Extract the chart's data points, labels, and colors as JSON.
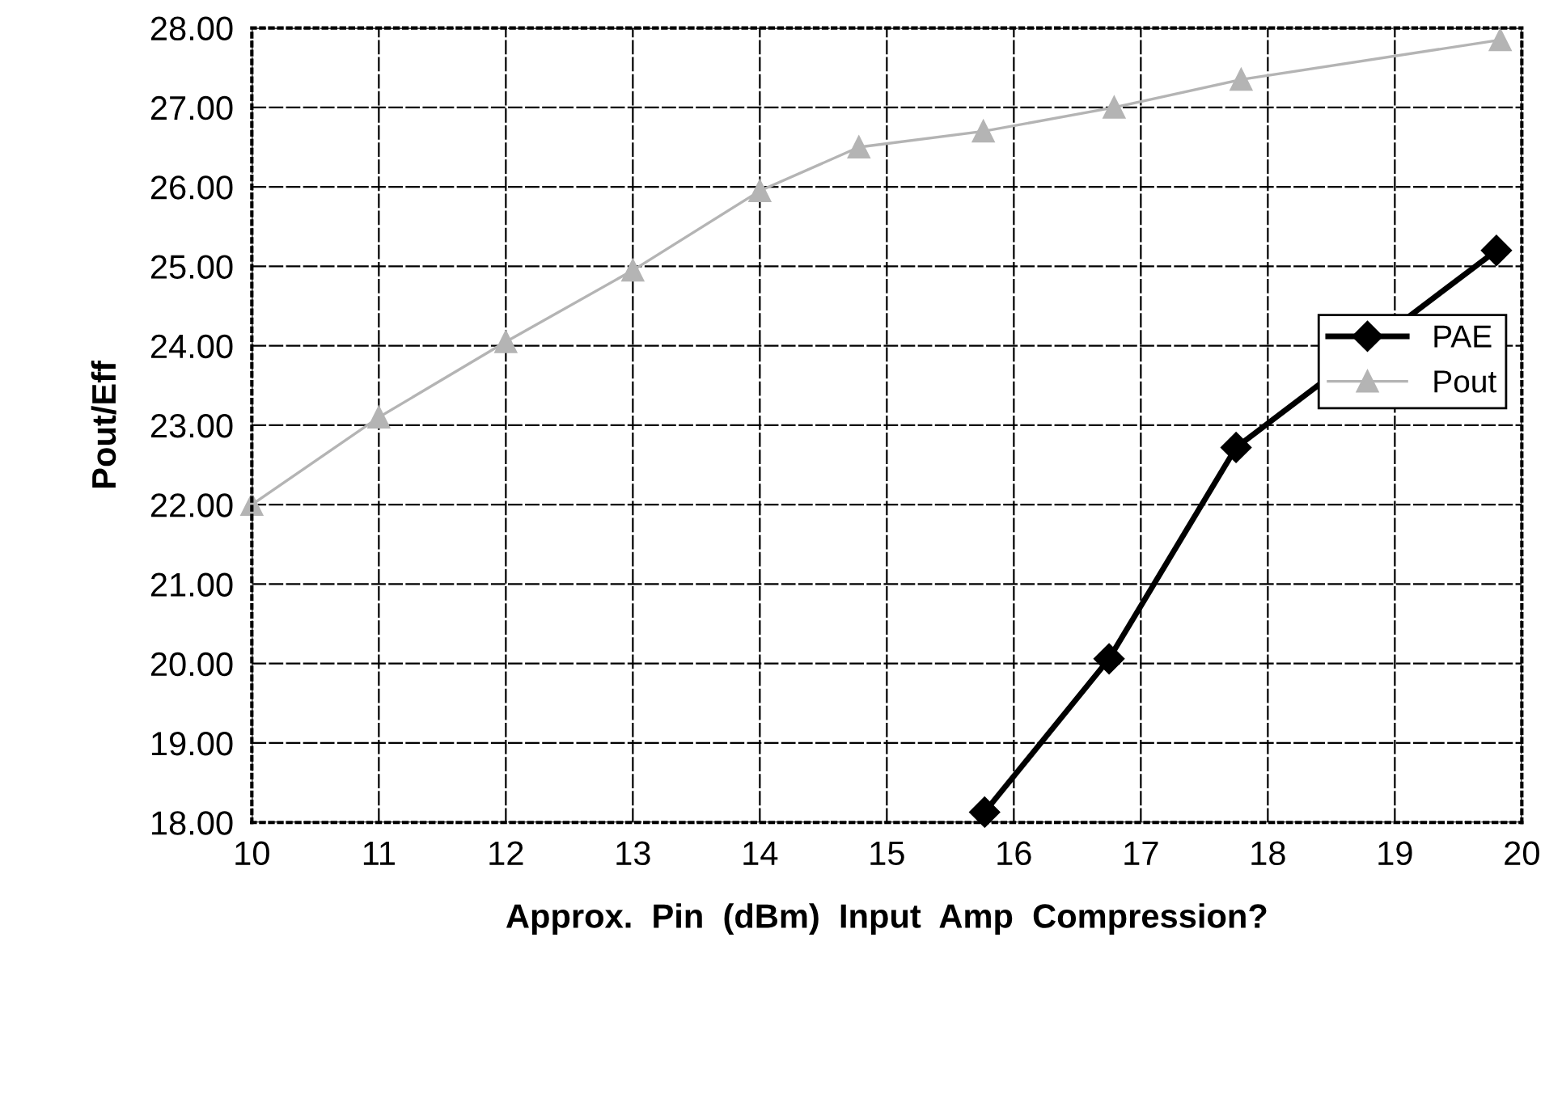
{
  "chart_data": {
    "type": "line",
    "xlabel": "Approx.  Pin  (dBm)  Input  Amp  Compression?",
    "ylabel": "Pout/Eff",
    "series": [
      {
        "name": "PAE",
        "color": "#000000",
        "marker": "diamond",
        "x": [
          15.77,
          16.75,
          17.75,
          19.8
        ],
        "values": [
          18.13,
          20.06,
          22.72,
          25.2
        ]
      },
      {
        "name": "Pout",
        "color": "#b4b4b4",
        "marker": "triangle",
        "x": [
          10,
          11,
          12,
          13,
          14,
          14.78,
          15.76,
          16.79,
          17.79,
          19.83
        ],
        "values": [
          22.0,
          23.1,
          24.05,
          24.95,
          25.95,
          26.5,
          26.7,
          27.0,
          27.35,
          27.85
        ]
      }
    ],
    "xlim": [
      10,
      20
    ],
    "xticks": [
      10,
      11,
      12,
      13,
      14,
      15,
      16,
      17,
      18,
      19,
      20
    ],
    "ylim": [
      18,
      28
    ],
    "yticks": [
      {
        "value": 18,
        "label": "18.00"
      },
      {
        "value": 19,
        "label": "19.00"
      },
      {
        "value": 20,
        "label": "20.00"
      },
      {
        "value": 21,
        "label": "21.00"
      },
      {
        "value": 22,
        "label": "22.00"
      },
      {
        "value": 23,
        "label": "23.00"
      },
      {
        "value": 24,
        "label": "24.00"
      },
      {
        "value": 25,
        "label": "25.00"
      },
      {
        "value": 26,
        "label": "26.00"
      },
      {
        "value": 27,
        "label": "27.00"
      },
      {
        "value": 28,
        "label": "28.00"
      }
    ],
    "grid": true,
    "legend": "right"
  }
}
